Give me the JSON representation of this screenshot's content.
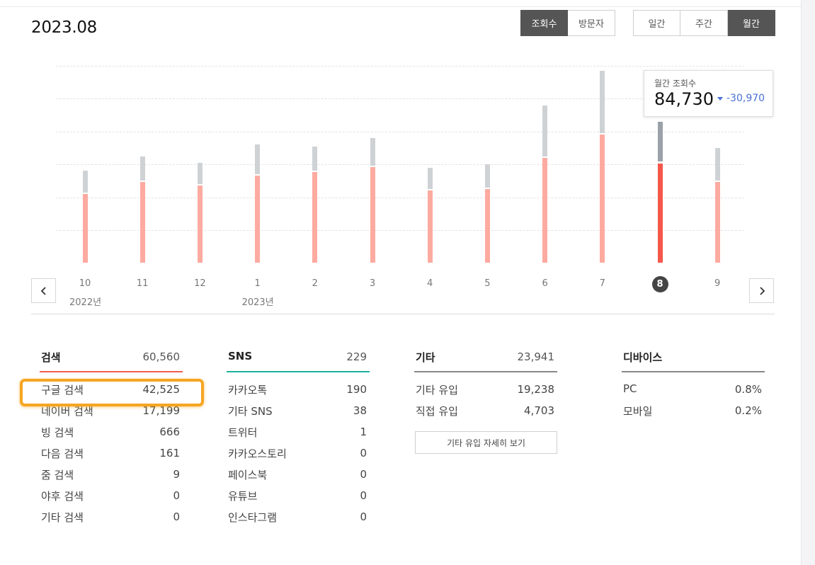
{
  "header": {
    "title": "2023.08",
    "metric_tabs": [
      {
        "label": "조회수",
        "active": true
      },
      {
        "label": "방문자",
        "active": false
      }
    ],
    "period_tabs": [
      {
        "label": "일간",
        "active": false
      },
      {
        "label": "주간",
        "active": false
      },
      {
        "label": "월간",
        "active": true
      }
    ]
  },
  "chart_data": {
    "type": "bar",
    "stacked": true,
    "categories": [
      "10",
      "11",
      "12",
      "1",
      "2",
      "3",
      "4",
      "5",
      "6",
      "7",
      "8",
      "9"
    ],
    "year_labels": [
      {
        "label": "2022년",
        "category": "10"
      },
      {
        "label": "2023년",
        "category": "1"
      }
    ],
    "selected_category": "8",
    "series": [
      {
        "values": [
          42000,
          49000,
          47000,
          53000,
          55000,
          58000,
          44000,
          45000,
          64000,
          78000,
          60560,
          49000
        ]
      },
      {
        "values": [
          13000,
          15000,
          13000,
          18000,
          15000,
          17000,
          13000,
          14000,
          31000,
          38000,
          24170,
          20000
        ]
      }
    ],
    "series_colors": [
      "#fdaaa0",
      "#cfd2d5"
    ],
    "selected_colors": [
      "#f5574b",
      "#9aa1a8"
    ],
    "ylim": [
      0,
      125000
    ],
    "grid": true
  },
  "tooltip": {
    "label": "월간 조회수",
    "value": "84,730",
    "diff": "-30,970",
    "diff_color": "#4a6fd8"
  },
  "stats": {
    "search": {
      "label": "검색",
      "total": "60,560",
      "color": "#f25c50",
      "rows": [
        {
          "label": "구글 검색",
          "value": "42,525"
        },
        {
          "label": "네이버 검색",
          "value": "17,199"
        },
        {
          "label": "빙 검색",
          "value": "666"
        },
        {
          "label": "다음 검색",
          "value": "161"
        },
        {
          "label": "줌 검색",
          "value": "9"
        },
        {
          "label": "야후 검색",
          "value": "0"
        },
        {
          "label": "기타 검색",
          "value": "0"
        }
      ]
    },
    "sns": {
      "label": "SNS",
      "total": "229",
      "color": "#1db39c",
      "rows": [
        {
          "label": "카카오톡",
          "value": "190"
        },
        {
          "label": "기타 SNS",
          "value": "38"
        },
        {
          "label": "트위터",
          "value": "1"
        },
        {
          "label": "카카오스토리",
          "value": "0"
        },
        {
          "label": "페이스북",
          "value": "0"
        },
        {
          "label": "유튜브",
          "value": "0"
        },
        {
          "label": "인스타그램",
          "value": "0"
        }
      ]
    },
    "etc": {
      "label": "기타",
      "total": "23,941",
      "rows": [
        {
          "label": "기타 유입",
          "value": "19,238"
        },
        {
          "label": "직접 유입",
          "value": "4,703"
        }
      ],
      "detail_button": "기타 유입 자세히 보기"
    },
    "device": {
      "label": "디바이스",
      "rows": [
        {
          "label": "PC",
          "value": "0.8%"
        },
        {
          "label": "모바일",
          "value": "0.2%"
        }
      ]
    }
  },
  "highlight_color": "#f5a623"
}
